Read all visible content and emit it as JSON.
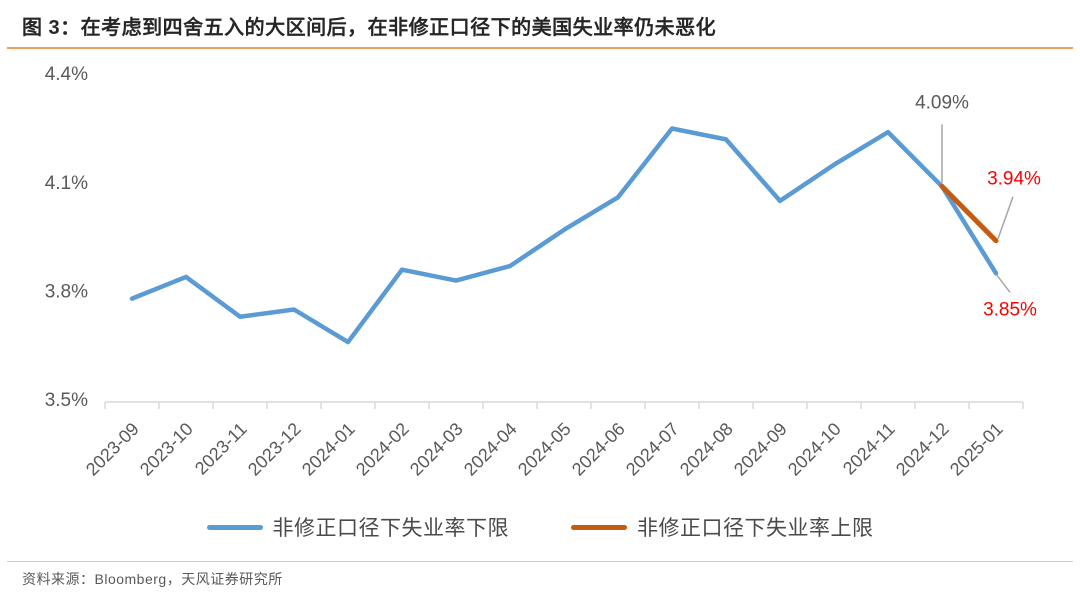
{
  "title": "图 3：在考虑到四舍五入的大区间后，在非修正口径下的美国失业率仍未恶化",
  "source": "资料来源：Bloomberg，天风证券研究所",
  "colors": {
    "title_underline": "#F2A15B",
    "axis": "#D9D9D9",
    "tick_label": "#595959",
    "annotation_gray": "#595959",
    "annotation_red": "#FF0000",
    "callout": "#A6A6A6",
    "series_lower": "#5B9BD5",
    "series_upper": "#C55A11",
    "source_rule": "#CFCFCF"
  },
  "legend": [
    {
      "label": "非修正口径下失业率下限",
      "color": "#5B9BD5"
    },
    {
      "label": "非修正口径下失业率上限",
      "color": "#C55A11"
    }
  ],
  "annotations": [
    {
      "text": "4.09%",
      "color_key": "annotation_gray",
      "point": {
        "series": 0,
        "index": 15
      }
    },
    {
      "text": "3.94%",
      "color_key": "annotation_red",
      "point": {
        "series": 1,
        "index": 16
      }
    },
    {
      "text": "3.85%",
      "color_key": "annotation_red",
      "point": {
        "series": 0,
        "index": 16
      }
    }
  ],
  "chart_data": {
    "type": "line",
    "title": "在考虑到四舍五入的大区间后，在非修正口径下的美国失业率仍未恶化",
    "categories": [
      "2023-09",
      "2023-10",
      "2023-11",
      "2023-12",
      "2024-01",
      "2024-02",
      "2024-03",
      "2024-04",
      "2024-05",
      "2024-06",
      "2024-07",
      "2024-08",
      "2024-09",
      "2024-10",
      "2024-11",
      "2024-12",
      "2025-01"
    ],
    "series": [
      {
        "name": "非修正口径下失业率下限",
        "color": "#5B9BD5",
        "values": [
          3.78,
          3.84,
          3.73,
          3.75,
          3.66,
          3.86,
          3.83,
          3.87,
          3.97,
          4.06,
          4.25,
          4.22,
          4.05,
          4.15,
          4.24,
          4.09,
          3.85
        ]
      },
      {
        "name": "非修正口径下失业率上限",
        "color": "#C55A11",
        "values": [
          null,
          null,
          null,
          null,
          null,
          null,
          null,
          null,
          null,
          null,
          null,
          null,
          null,
          null,
          null,
          4.09,
          3.94
        ]
      }
    ],
    "ylim": [
      3.5,
      4.4
    ],
    "yticks": [
      {
        "value": 4.4,
        "label": "4.4%"
      },
      {
        "value": 4.1,
        "label": "4.1%"
      },
      {
        "value": 3.8,
        "label": "3.8%"
      },
      {
        "value": 3.5,
        "label": "3.5%"
      }
    ],
    "grid": false,
    "legend_position": "bottom",
    "x_label_rotation": -45
  }
}
